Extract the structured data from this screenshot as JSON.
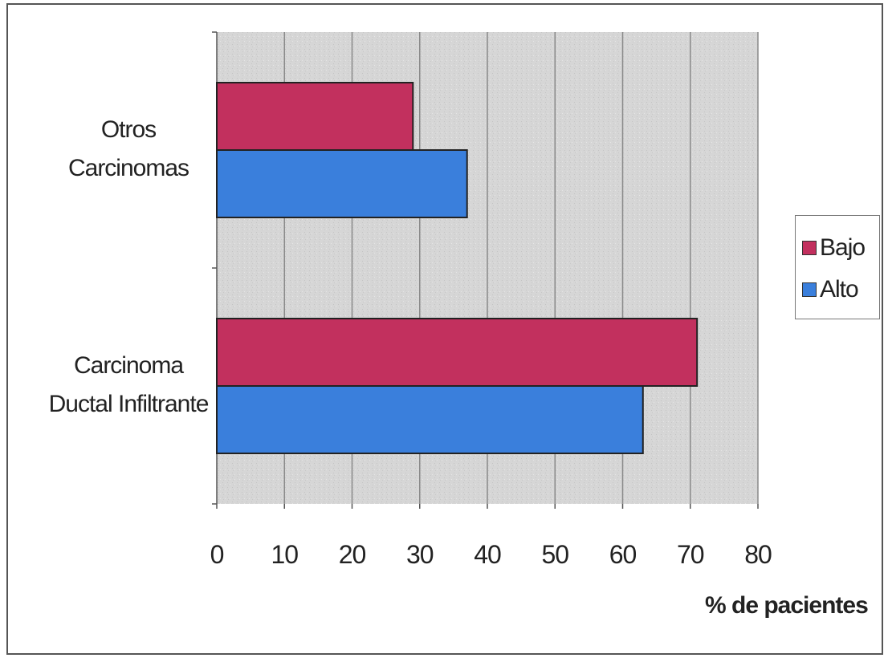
{
  "chart_data": {
    "type": "bar",
    "orientation": "horizontal",
    "categories": [
      "Carcinoma Ductal Infiltrante",
      "Otros Carcinomas"
    ],
    "category_lines": [
      [
        "Carcinoma",
        "Ductal Infiltrante"
      ],
      [
        "Otros",
        "Carcinomas"
      ]
    ],
    "series": [
      {
        "name": "Bajo",
        "color": "#c2305e",
        "values": [
          71,
          29
        ]
      },
      {
        "name": "Alto",
        "color": "#3a7fdc",
        "values": [
          63,
          37
        ]
      }
    ],
    "xlabel": "% de pacientes",
    "xlim": [
      0,
      80
    ],
    "xticks": [
      0,
      10,
      20,
      30,
      40,
      50,
      60,
      70,
      80
    ],
    "grid": true,
    "legend": "right",
    "plot_background": "#d8d8d8"
  }
}
